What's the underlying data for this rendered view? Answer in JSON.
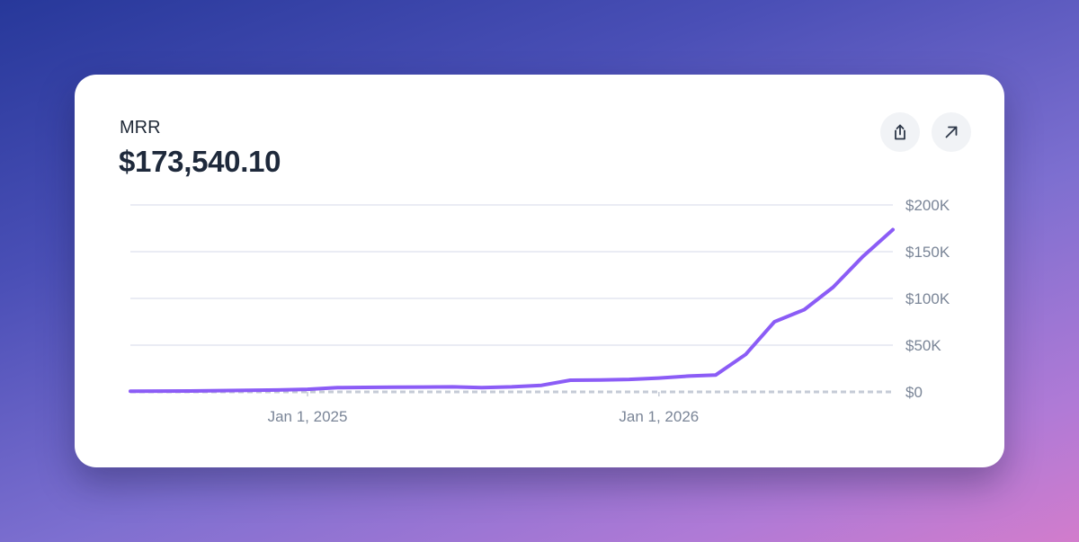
{
  "card": {
    "metric_label": "MRR",
    "metric_value": "$173,540.10"
  },
  "actions": {
    "share_icon": "share-icon",
    "expand_icon": "arrow-up-right-icon"
  },
  "colors": {
    "line": "#8b5cf6",
    "gridline": "#e3e6f0",
    "baseline": "#c5cbd6"
  },
  "chart_data": {
    "type": "line",
    "title": "",
    "xlabel": "",
    "ylabel": "",
    "ylim": [
      0,
      200000
    ],
    "y_ticks": [
      {
        "value": 200000,
        "label": "$200K"
      },
      {
        "value": 150000,
        "label": "$150K"
      },
      {
        "value": 100000,
        "label": "$100K"
      },
      {
        "value": 50000,
        "label": "$50K"
      },
      {
        "value": 0,
        "label": "$0"
      }
    ],
    "x_ticks": [
      {
        "value": "2025-01-01",
        "label": "Jan 1, 2025"
      },
      {
        "value": "2026-01-01",
        "label": "Jan 1, 2026"
      }
    ],
    "xlim": [
      "2024-07-01",
      "2026-09-01"
    ],
    "grid": true,
    "legend": "none",
    "series": [
      {
        "x": [
          "2024-07-01",
          "2024-08-01",
          "2024-09-01",
          "2024-10-01",
          "2024-11-01",
          "2024-12-01",
          "2025-01-01",
          "2025-02-01",
          "2025-03-01",
          "2025-04-01",
          "2025-05-01",
          "2025-06-01",
          "2025-07-01",
          "2025-08-01",
          "2025-09-01",
          "2025-10-01",
          "2025-11-01",
          "2025-12-01",
          "2026-01-01",
          "2026-02-01",
          "2026-03-01",
          "2026-04-01",
          "2026-05-01",
          "2026-06-01",
          "2026-07-01",
          "2026-08-01",
          "2026-09-01"
        ],
        "values": [
          800,
          900,
          1000,
          1300,
          1600,
          2000,
          2800,
          4500,
          4800,
          5000,
          5200,
          5400,
          4600,
          5400,
          7000,
          12500,
          12700,
          13400,
          14800,
          16900,
          18100,
          40000,
          75000,
          88000,
          112000,
          145000,
          173540
        ]
      }
    ]
  }
}
